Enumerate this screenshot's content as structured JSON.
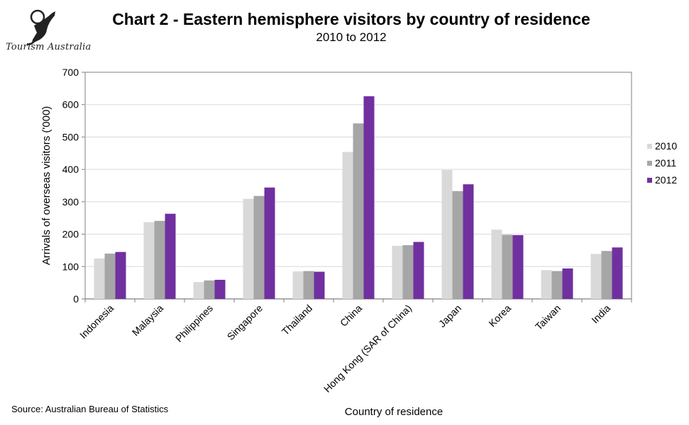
{
  "header": {
    "title": "Chart 2 - Eastern hemisphere visitors by country of residence",
    "subtitle": "2010 to 2012",
    "logo_text": "Tourism Australia"
  },
  "footer": {
    "source": "Source: Australian Bureau of Statistics"
  },
  "colors": {
    "2010": "#d9d9d9",
    "2011": "#a6a6a6",
    "2012": "#7030a0",
    "grid": "#d9d9d9",
    "axis": "#7f7f7f"
  },
  "chart_data": {
    "type": "bar",
    "title": "Chart 2 - Eastern hemisphere visitors by country of residence",
    "subtitle": "2010 to 2012",
    "xlabel": "Country of residence",
    "ylabel": "Arrivals of overseas visitors ('000)",
    "ylim": [
      0,
      700
    ],
    "yticks": [
      0,
      100,
      200,
      300,
      400,
      500,
      600,
      700
    ],
    "grid": true,
    "legend_position": "right",
    "categories": [
      "Indonesia",
      "Malaysia",
      "Philippines",
      "Singapore",
      "Thailand",
      "China",
      "Hong Kong (SAR of China)",
      "Japan",
      "Korea",
      "Taiwan",
      "India"
    ],
    "series": [
      {
        "name": "2010",
        "values": [
          125,
          237,
          52,
          309,
          85,
          454,
          164,
          398,
          214,
          89,
          139
        ]
      },
      {
        "name": "2011",
        "values": [
          140,
          241,
          57,
          318,
          86,
          542,
          166,
          333,
          198,
          86,
          148
        ]
      },
      {
        "name": "2012",
        "values": [
          145,
          263,
          59,
          344,
          84,
          626,
          176,
          354,
          197,
          94,
          159
        ]
      }
    ]
  }
}
